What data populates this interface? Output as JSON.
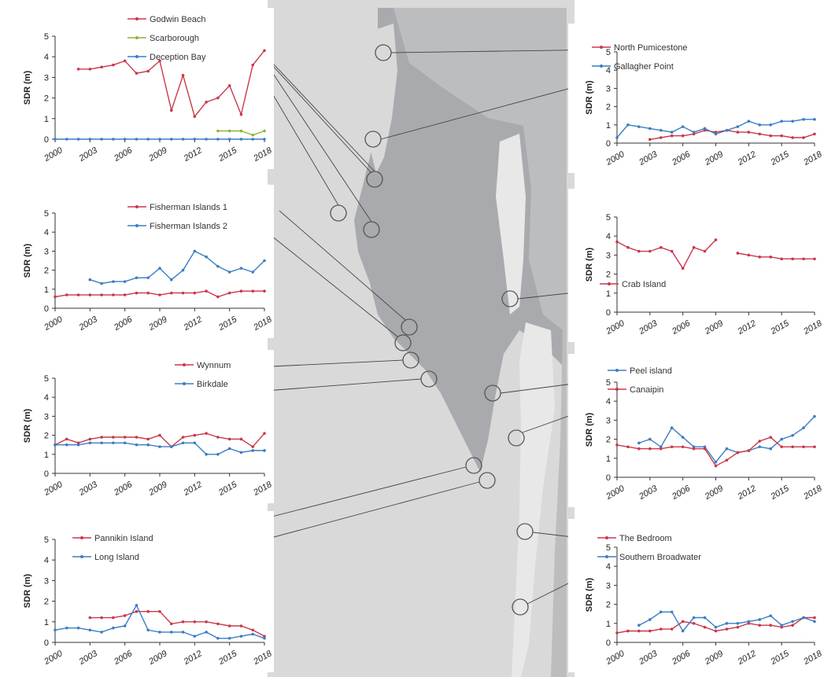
{
  "colors": {
    "red": "#c8394a",
    "blue": "#3b7dc4",
    "green": "#8db33a",
    "water": "#a9aaad",
    "land": "#d9d9d9",
    "island": "#e8e8e8"
  },
  "chart_data": [
    {
      "type": "line",
      "id": "panel-top-left",
      "ylabel": "SDR (m)",
      "ylim": [
        0,
        5
      ],
      "yticks": [
        0,
        1,
        2,
        3,
        4,
        5
      ],
      "xlim": [
        2000,
        2018
      ],
      "xticks": [
        2000,
        2003,
        2006,
        2009,
        2012,
        2015,
        2018
      ],
      "series": [
        {
          "name": "Godwin Beach",
          "color": "red",
          "x": [
            2002,
            2003,
            2004,
            2005,
            2006,
            2007,
            2008,
            2009,
            2010,
            2011,
            2012,
            2013,
            2014,
            2015,
            2016,
            2017,
            2018
          ],
          "y": [
            3.4,
            3.4,
            3.5,
            3.6,
            3.8,
            3.2,
            3.3,
            3.8,
            1.4,
            3.1,
            1.1,
            1.8,
            2.0,
            2.6,
            1.2,
            3.6,
            4.3
          ]
        },
        {
          "name": "Scarborough",
          "color": "green",
          "x": [
            2014,
            2015,
            2016,
            2017,
            2018
          ],
          "y": [
            0.4,
            0.4,
            0.4,
            0.2,
            0.4
          ]
        },
        {
          "name": "Deception Bay",
          "color": "blue",
          "x": [
            2000,
            2001,
            2002,
            2003,
            2004,
            2005,
            2006,
            2007,
            2008,
            2009,
            2010,
            2011,
            2012,
            2013,
            2014,
            2015,
            2016,
            2017,
            2018
          ],
          "y": [
            0,
            0,
            0,
            0,
            0,
            0,
            0,
            0,
            0,
            0,
            0,
            0,
            0,
            0,
            0,
            0,
            0,
            0,
            0
          ]
        }
      ]
    },
    {
      "type": "line",
      "id": "panel-mid-left-1",
      "ylabel": "SDR (m)",
      "ylim": [
        0,
        5
      ],
      "yticks": [
        0,
        1,
        2,
        3,
        4,
        5
      ],
      "xlim": [
        2000,
        2018
      ],
      "xticks": [
        2000,
        2003,
        2006,
        2009,
        2012,
        2015,
        2018
      ],
      "series": [
        {
          "name": "Fisherman Islands 1",
          "color": "red",
          "x": [
            2000,
            2001,
            2002,
            2003,
            2004,
            2005,
            2006,
            2007,
            2008,
            2009,
            2010,
            2011,
            2012,
            2013,
            2014,
            2015,
            2016,
            2017,
            2018
          ],
          "y": [
            0.6,
            0.7,
            0.7,
            0.7,
            0.7,
            0.7,
            0.7,
            0.8,
            0.8,
            0.7,
            0.8,
            0.8,
            0.8,
            0.9,
            0.6,
            0.8,
            0.9,
            0.9,
            0.9
          ]
        },
        {
          "name": "Fisherman Islands 2",
          "color": "blue",
          "x": [
            2003,
            2004,
            2005,
            2006,
            2007,
            2008,
            2009,
            2010,
            2011,
            2012,
            2013,
            2014,
            2015,
            2016,
            2017,
            2018
          ],
          "y": [
            1.5,
            1.3,
            1.4,
            1.4,
            1.6,
            1.6,
            2.1,
            1.5,
            2.0,
            3.0,
            2.7,
            2.2,
            1.9,
            2.1,
            1.9,
            2.5
          ]
        }
      ]
    },
    {
      "type": "line",
      "id": "panel-mid-left-2",
      "ylabel": "SDR (m)",
      "ylim": [
        0,
        5
      ],
      "yticks": [
        0,
        1,
        2,
        3,
        4,
        5
      ],
      "xlim": [
        2000,
        2018
      ],
      "xticks": [
        2000,
        2003,
        2006,
        2009,
        2012,
        2015,
        2018
      ],
      "series": [
        {
          "name": "Wynnum",
          "color": "red",
          "x": [
            2000,
            2001,
            2002,
            2003,
            2004,
            2005,
            2006,
            2007,
            2008,
            2009,
            2010,
            2011,
            2012,
            2013,
            2014,
            2015,
            2016,
            2017,
            2018
          ],
          "y": [
            1.5,
            1.8,
            1.6,
            1.8,
            1.9,
            1.9,
            1.9,
            1.9,
            1.8,
            2.0,
            1.4,
            1.9,
            2.0,
            2.1,
            1.9,
            1.8,
            1.8,
            1.4,
            2.1
          ]
        },
        {
          "name": "Birkdale",
          "color": "blue",
          "x": [
            2000,
            2001,
            2002,
            2003,
            2004,
            2005,
            2006,
            2007,
            2008,
            2009,
            2010,
            2011,
            2012,
            2013,
            2014,
            2015,
            2016,
            2017,
            2018
          ],
          "y": [
            1.5,
            1.5,
            1.5,
            1.6,
            1.6,
            1.6,
            1.6,
            1.5,
            1.5,
            1.4,
            1.4,
            1.6,
            1.6,
            1.0,
            1.0,
            1.3,
            1.1,
            1.2,
            1.2
          ]
        }
      ]
    },
    {
      "type": "line",
      "id": "panel-bottom-left",
      "ylabel": "SDR (m)",
      "ylim": [
        0,
        5
      ],
      "yticks": [
        0,
        1,
        2,
        3,
        4,
        5
      ],
      "xlim": [
        2000,
        2018
      ],
      "xticks": [
        2000,
        2003,
        2006,
        2009,
        2012,
        2015,
        2018
      ],
      "series": [
        {
          "name": "Pannikin Island",
          "color": "red",
          "x": [
            2003,
            2004,
            2005,
            2006,
            2007,
            2008,
            2009,
            2010,
            2011,
            2012,
            2013,
            2014,
            2015,
            2016,
            2017,
            2018
          ],
          "y": [
            1.2,
            1.2,
            1.2,
            1.3,
            1.5,
            1.5,
            1.5,
            0.9,
            1.0,
            1.0,
            1.0,
            0.9,
            0.8,
            0.8,
            0.6,
            0.3
          ]
        },
        {
          "name": "Long Island",
          "color": "blue",
          "x": [
            2000,
            2001,
            2002,
            2003,
            2004,
            2005,
            2006,
            2007,
            2008,
            2009,
            2010,
            2011,
            2012,
            2013,
            2014,
            2015,
            2016,
            2017,
            2018
          ],
          "y": [
            0.6,
            0.7,
            0.7,
            0.6,
            0.5,
            0.7,
            0.8,
            1.8,
            0.6,
            0.5,
            0.5,
            0.5,
            0.3,
            0.5,
            0.2,
            0.2,
            0.3,
            0.4,
            0.2
          ]
        }
      ]
    },
    {
      "type": "line",
      "id": "panel-top-right",
      "ylabel": "SDR (m)",
      "ylim": [
        0,
        5
      ],
      "yticks": [
        0,
        1,
        2,
        3,
        4,
        5
      ],
      "xlim": [
        2000,
        2018
      ],
      "xticks": [
        2000,
        2003,
        2006,
        2009,
        2012,
        2015,
        2018
      ],
      "series": [
        {
          "name": "North Pumicestone",
          "color": "red",
          "x": [
            2003,
            2004,
            2005,
            2006,
            2007,
            2008,
            2009,
            2010,
            2011,
            2012,
            2013,
            2014,
            2015,
            2016,
            2017,
            2018
          ],
          "y": [
            0.2,
            0.3,
            0.4,
            0.4,
            0.5,
            0.7,
            0.6,
            0.7,
            0.6,
            0.6,
            0.5,
            0.4,
            0.4,
            0.3,
            0.3,
            0.5
          ]
        },
        {
          "name": "Gallagher Point",
          "color": "blue",
          "x": [
            2000,
            2001,
            2002,
            2003,
            2004,
            2005,
            2006,
            2007,
            2008,
            2009,
            2010,
            2011,
            2012,
            2013,
            2014,
            2015,
            2016,
            2017,
            2018
          ],
          "y": [
            0.3,
            1.0,
            0.9,
            0.8,
            0.7,
            0.6,
            0.9,
            0.6,
            0.8,
            0.5,
            0.7,
            0.9,
            1.2,
            1.0,
            1.0,
            1.2,
            1.2,
            1.3,
            1.3
          ]
        }
      ]
    },
    {
      "type": "line",
      "id": "panel-mid-right-1",
      "ylabel": "SDR (m)",
      "ylim": [
        0,
        5
      ],
      "yticks": [
        0,
        1,
        2,
        3,
        4,
        5
      ],
      "xlim": [
        2000,
        2018
      ],
      "xticks": [
        2000,
        2003,
        2006,
        2009,
        2012,
        2015,
        2018
      ],
      "series": [
        {
          "name": "Crab Island",
          "color": "red",
          "x": [
            2000,
            2001,
            2002,
            2003,
            2004,
            2005,
            2006,
            2007,
            2008,
            2009,
            null,
            2011,
            2012,
            2013,
            2014,
            2015,
            2016,
            2017,
            2018
          ],
          "y": [
            3.7,
            3.4,
            3.2,
            3.2,
            3.4,
            3.2,
            2.3,
            3.4,
            3.2,
            3.8,
            null,
            3.1,
            3.0,
            2.9,
            2.9,
            2.8,
            2.8,
            2.8,
            2.8
          ]
        }
      ]
    },
    {
      "type": "line",
      "id": "panel-mid-right-2",
      "ylabel": "SDR (m)",
      "ylim": [
        0,
        5
      ],
      "yticks": [
        0,
        1,
        2,
        3,
        4,
        5
      ],
      "xlim": [
        2000,
        2018
      ],
      "xticks": [
        2000,
        2003,
        2006,
        2009,
        2012,
        2015,
        2018
      ],
      "series": [
        {
          "name": "Peel island",
          "color": "blue",
          "x": [
            2002,
            2003,
            2004,
            2005,
            2006,
            2007,
            2008,
            2009,
            2010,
            2011,
            2012,
            2013,
            2014,
            2015,
            2016,
            2017,
            2018
          ],
          "y": [
            1.8,
            2.0,
            1.6,
            2.6,
            2.1,
            1.6,
            1.6,
            0.8,
            1.5,
            1.3,
            1.4,
            1.6,
            1.5,
            2.0,
            2.2,
            2.6,
            3.2
          ]
        },
        {
          "name": "Canaipin",
          "color": "red",
          "x": [
            2000,
            2001,
            2002,
            2003,
            2004,
            2005,
            2006,
            2007,
            2008,
            2009,
            2010,
            2011,
            2012,
            2013,
            2014,
            2015,
            2016,
            2017,
            2018
          ],
          "y": [
            1.7,
            1.6,
            1.5,
            1.5,
            1.5,
            1.6,
            1.6,
            1.5,
            1.5,
            0.6,
            0.9,
            1.3,
            1.4,
            1.9,
            2.1,
            1.6,
            1.6,
            1.6,
            1.6
          ]
        }
      ]
    },
    {
      "type": "line",
      "id": "panel-bottom-right",
      "ylabel": "SDR (m)",
      "ylim": [
        0,
        5
      ],
      "yticks": [
        0,
        1,
        2,
        3,
        4,
        5
      ],
      "xlim": [
        2000,
        2018
      ],
      "xticks": [
        2000,
        2003,
        2006,
        2009,
        2012,
        2015,
        2018
      ],
      "series": [
        {
          "name": "The Bedroom",
          "color": "red",
          "x": [
            2000,
            2001,
            2002,
            2003,
            2004,
            2005,
            2006,
            2007,
            2008,
            2009,
            2010,
            2011,
            2012,
            2013,
            2014,
            2015,
            2016,
            2017,
            2018
          ],
          "y": [
            0.5,
            0.6,
            0.6,
            0.6,
            0.7,
            0.7,
            1.1,
            1.0,
            0.8,
            0.6,
            0.7,
            0.8,
            1.0,
            0.9,
            0.9,
            0.8,
            0.9,
            1.3,
            1.3
          ]
        },
        {
          "name": "Southern Broadwater",
          "color": "blue",
          "x": [
            2002,
            2003,
            2004,
            2005,
            2006,
            2007,
            2008,
            2009,
            2010,
            2011,
            2012,
            2013,
            2014,
            2015,
            2016,
            2017,
            2018
          ],
          "y": [
            0.9,
            1.2,
            1.6,
            1.6,
            0.6,
            1.3,
            1.3,
            0.8,
            1.0,
            1.0,
            1.1,
            1.2,
            1.4,
            0.9,
            1.1,
            1.3,
            1.1
          ]
        }
      ]
    }
  ]
}
